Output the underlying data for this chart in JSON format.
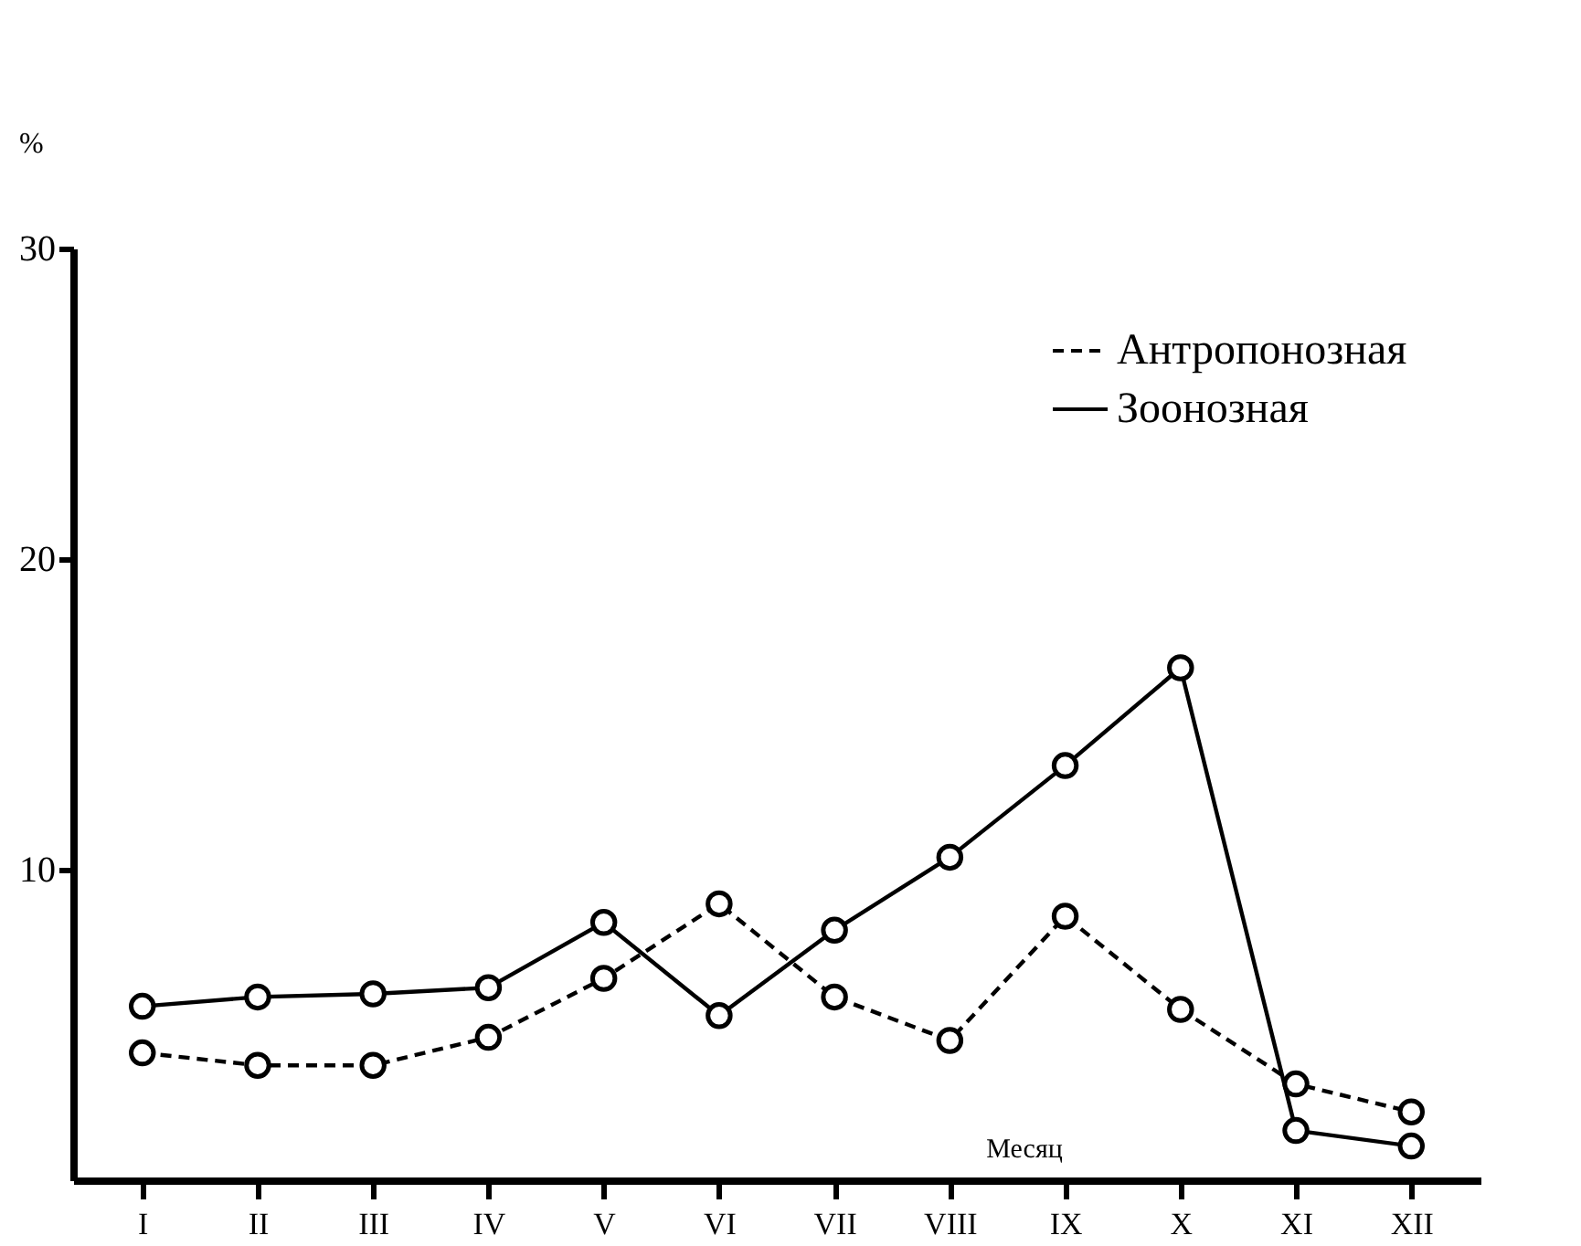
{
  "chart_data": {
    "type": "line",
    "xlabel": "Месяц",
    "ylabel": "%",
    "categories": [
      "I",
      "II",
      "III",
      "IV",
      "V",
      "VI",
      "VII",
      "VIII",
      "IX",
      "X",
      "XI",
      "XII"
    ],
    "ylim": [
      0,
      30
    ],
    "yticks": [
      10,
      20,
      30
    ],
    "grid": false,
    "legend": "top right",
    "marker": "circle",
    "series": [
      {
        "name": "Антропонозная",
        "color": "#000000",
        "line_style": "dashed",
        "values": [
          4.1,
          3.7,
          3.7,
          4.6,
          6.5,
          8.9,
          5.9,
          4.5,
          8.5,
          5.5,
          3.1,
          2.2
        ]
      },
      {
        "name": "Зоонозная",
        "color": "#000000",
        "line_style": "solid",
        "values": [
          5.6,
          5.9,
          6.0,
          6.2,
          8.3,
          5.3,
          8.05,
          10.4,
          13.35,
          16.5,
          1.6,
          1.1
        ]
      }
    ]
  }
}
